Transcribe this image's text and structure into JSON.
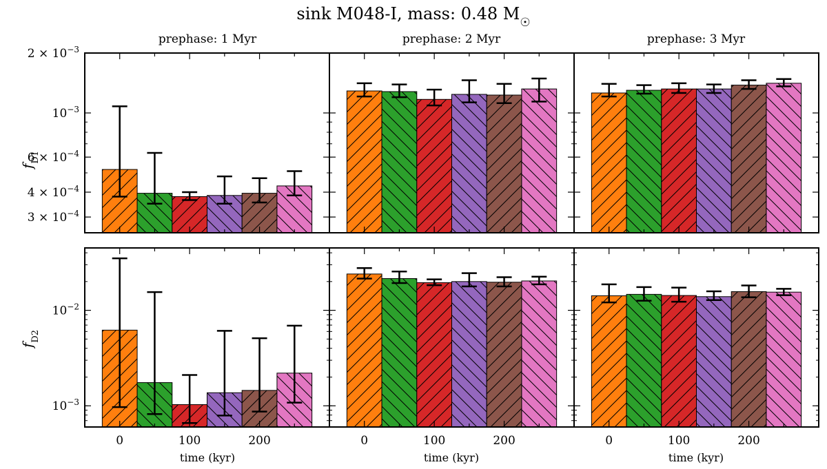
{
  "chart_data": {
    "type": "bar",
    "title": "sink M048-I, mass: 0.48 M",
    "title_symbol": "☉",
    "columns": [
      "prephase: 1 Myr",
      "prephase: 2 Myr",
      "prephase: 3 Myr"
    ],
    "xlabel": "time (kyr)",
    "x": [
      0,
      50,
      100,
      150,
      200,
      250
    ],
    "x_ticks": [
      0,
      100,
      200
    ],
    "x_tick_labels": [
      "0",
      "100",
      "200"
    ],
    "bar_colors": [
      "#ff7f0e",
      "#2ca02c",
      "#d62728",
      "#9467bd",
      "#8c564b",
      "#e377c2"
    ],
    "bar_hatches": [
      "/",
      "\\",
      "/",
      "\\",
      "/",
      "\\"
    ],
    "rows": [
      {
        "ylabel": "f",
        "ylabel_sub": "D1",
        "yscale": "log",
        "ylim": [
          0.00025,
          0.002
        ],
        "y_ticks": [
          0.002,
          0.001,
          0.0006,
          0.0004,
          0.0003
        ],
        "y_tick_labels": [
          {
            "mantissa": "2 × 10",
            "exp": "−3"
          },
          {
            "mantissa": "10",
            "exp": "−3"
          },
          {
            "mantissa": "6 × 10",
            "exp": "−4"
          },
          {
            "mantissa": "4 × 10",
            "exp": "−4"
          },
          {
            "mantissa": "3 × 10",
            "exp": "−4"
          }
        ],
        "panels": [
          {
            "values": [
              0.00052,
              0.000395,
              0.00038,
              0.000385,
              0.000395,
              0.00043
            ],
            "err_low": [
              0.00038,
              0.00035,
              0.000365,
              0.00035,
              0.000355,
              0.000385
            ],
            "err_high": [
              0.00108,
              0.00063,
              0.0004,
              0.00048,
              0.00047,
              0.00051
            ]
          },
          {
            "values": [
              0.00129,
              0.00128,
              0.00117,
              0.00124,
              0.00123,
              0.00132
            ],
            "err_low": [
              0.00121,
              0.0012,
              0.00109,
              0.00113,
              0.00112,
              0.00114
            ],
            "err_high": [
              0.00141,
              0.00139,
              0.00131,
              0.00146,
              0.0014,
              0.00149
            ]
          },
          {
            "values": [
              0.00126,
              0.0013,
              0.00132,
              0.00132,
              0.00138,
              0.00141
            ],
            "err_low": [
              0.00121,
              0.00125,
              0.00126,
              0.00126,
              0.00132,
              0.00136
            ],
            "err_high": [
              0.0014,
              0.00138,
              0.00141,
              0.00139,
              0.00146,
              0.00148
            ]
          }
        ]
      },
      {
        "ylabel": "f",
        "ylabel_sub": "D2",
        "yscale": "log",
        "ylim": [
          0.0006,
          0.045
        ],
        "y_ticks": [
          0.01,
          0.001
        ],
        "y_tick_labels": [
          {
            "mantissa": "10",
            "exp": "−2"
          },
          {
            "mantissa": "10",
            "exp": "−3"
          }
        ],
        "panels": [
          {
            "values": [
              0.0062,
              0.00175,
              0.00103,
              0.00137,
              0.00145,
              0.0022
            ],
            "err_low": [
              0.00097,
              0.00082,
              0.00066,
              0.00079,
              0.00087,
              0.00108
            ],
            "err_high": [
              0.035,
              0.0155,
              0.0021,
              0.0061,
              0.0051,
              0.0069
            ]
          },
          {
            "values": [
              0.024,
              0.0215,
              0.0195,
              0.02,
              0.0197,
              0.0203
            ],
            "err_low": [
              0.0215,
              0.0193,
              0.0183,
              0.0178,
              0.0178,
              0.0187
            ],
            "err_high": [
              0.0277,
              0.0255,
              0.0211,
              0.0245,
              0.0222,
              0.0225
            ]
          },
          {
            "values": [
              0.0142,
              0.0147,
              0.0143,
              0.0139,
              0.0157,
              0.0155
            ],
            "err_low": [
              0.0121,
              0.0126,
              0.0123,
              0.0128,
              0.0137,
              0.0144
            ],
            "err_high": [
              0.0187,
              0.0175,
              0.0173,
              0.0158,
              0.0182,
              0.0168
            ]
          }
        ]
      }
    ]
  }
}
